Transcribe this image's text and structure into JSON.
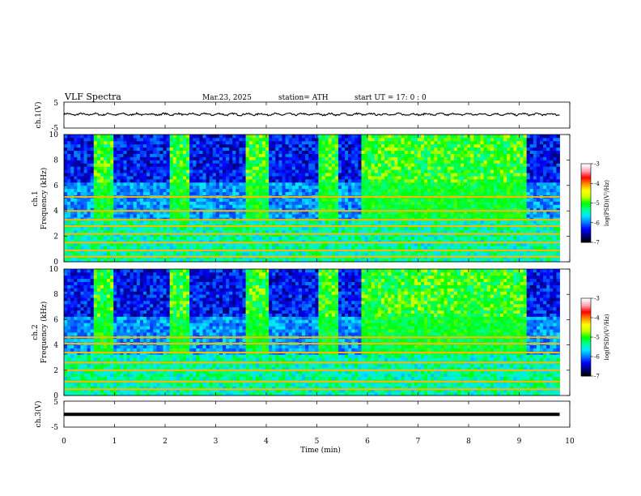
{
  "header": {
    "title": "VLF  Spectra",
    "date": "Mar.23, 2025",
    "station": "station= ATH",
    "start_ut": "start  UT  =    17: 0  : 0"
  },
  "colors": {
    "colormap": [
      "#000000",
      "#00007a",
      "#0000ff",
      "#0078ff",
      "#00e6ff",
      "#00ff96",
      "#00ff00",
      "#c8ff00",
      "#ffff00",
      "#ff8c00",
      "#ff0000",
      "#ffa0b4",
      "#ffffff"
    ],
    "trace": "#000000"
  },
  "chart_data": [
    {
      "type": "line",
      "name": "ch.1 waveform",
      "ylabel": "ch.1(V)",
      "ylim": [
        -5,
        5
      ],
      "yticks": [
        "5",
        "-5"
      ],
      "x_range_min": [
        0,
        9.8
      ],
      "baseline_v": 0.3,
      "amplitude_v": 0.6
    },
    {
      "type": "heatmap",
      "ylabel": "ch.1\nFrequency (kHz)",
      "yticks": [
        "0",
        "2",
        "4",
        "6",
        "8",
        "10"
      ],
      "ylim_khz": [
        0,
        10
      ],
      "x_range_min": [
        0,
        9.8
      ],
      "colorbar": {
        "label": "log(PSD)(V²/Hz)",
        "ticks": [
          "-3",
          "-4",
          "-5",
          "-6",
          "-7"
        ],
        "range": [
          -7,
          -3
        ]
      },
      "quiet_intervals_min": [
        [
          0.6,
          1.0
        ],
        [
          2.1,
          2.45
        ],
        [
          3.6,
          4.05
        ],
        [
          5.05,
          5.45
        ],
        [
          5.85,
          9.15
        ]
      ],
      "bright_lines_khz": [
        0.4,
        0.9,
        1.5,
        2.2,
        2.8,
        3.3,
        4.0,
        5.1
      ]
    },
    {
      "type": "heatmap",
      "ylabel": "ch.2\nFrequency (kHz)",
      "yticks": [
        "0",
        "2",
        "4",
        "6",
        "8",
        "10"
      ],
      "ylim_khz": [
        0,
        10
      ],
      "x_range_min": [
        0,
        9.8
      ],
      "colorbar": {
        "label": "log(PSD)(V²/Hz)",
        "ticks": [
          "-3",
          "-4",
          "-5",
          "-6",
          "-7"
        ],
        "range": [
          -7,
          -3
        ]
      },
      "quiet_intervals_min": [
        [
          0.6,
          1.0
        ],
        [
          2.1,
          2.45
        ],
        [
          3.6,
          4.05
        ],
        [
          5.05,
          5.45
        ],
        [
          5.85,
          9.15
        ]
      ],
      "bright_lines_khz": [
        0.5,
        1.1,
        2.0,
        2.6,
        3.4,
        4.1,
        4.6
      ]
    },
    {
      "type": "line",
      "name": "ch.3 waveform",
      "ylabel": "ch.3(V)",
      "ylim": [
        -5,
        5
      ],
      "yticks": [
        "5",
        "-5"
      ],
      "x_range_min": [
        0,
        9.8
      ],
      "baseline_v": -0.1,
      "amplitude_v": 0.0
    }
  ],
  "x_axis": {
    "label": "Time  (min)",
    "ticks": [
      "0",
      "1",
      "2",
      "3",
      "4",
      "5",
      "6",
      "7",
      "8",
      "9",
      "10"
    ],
    "range": [
      0,
      10
    ]
  }
}
